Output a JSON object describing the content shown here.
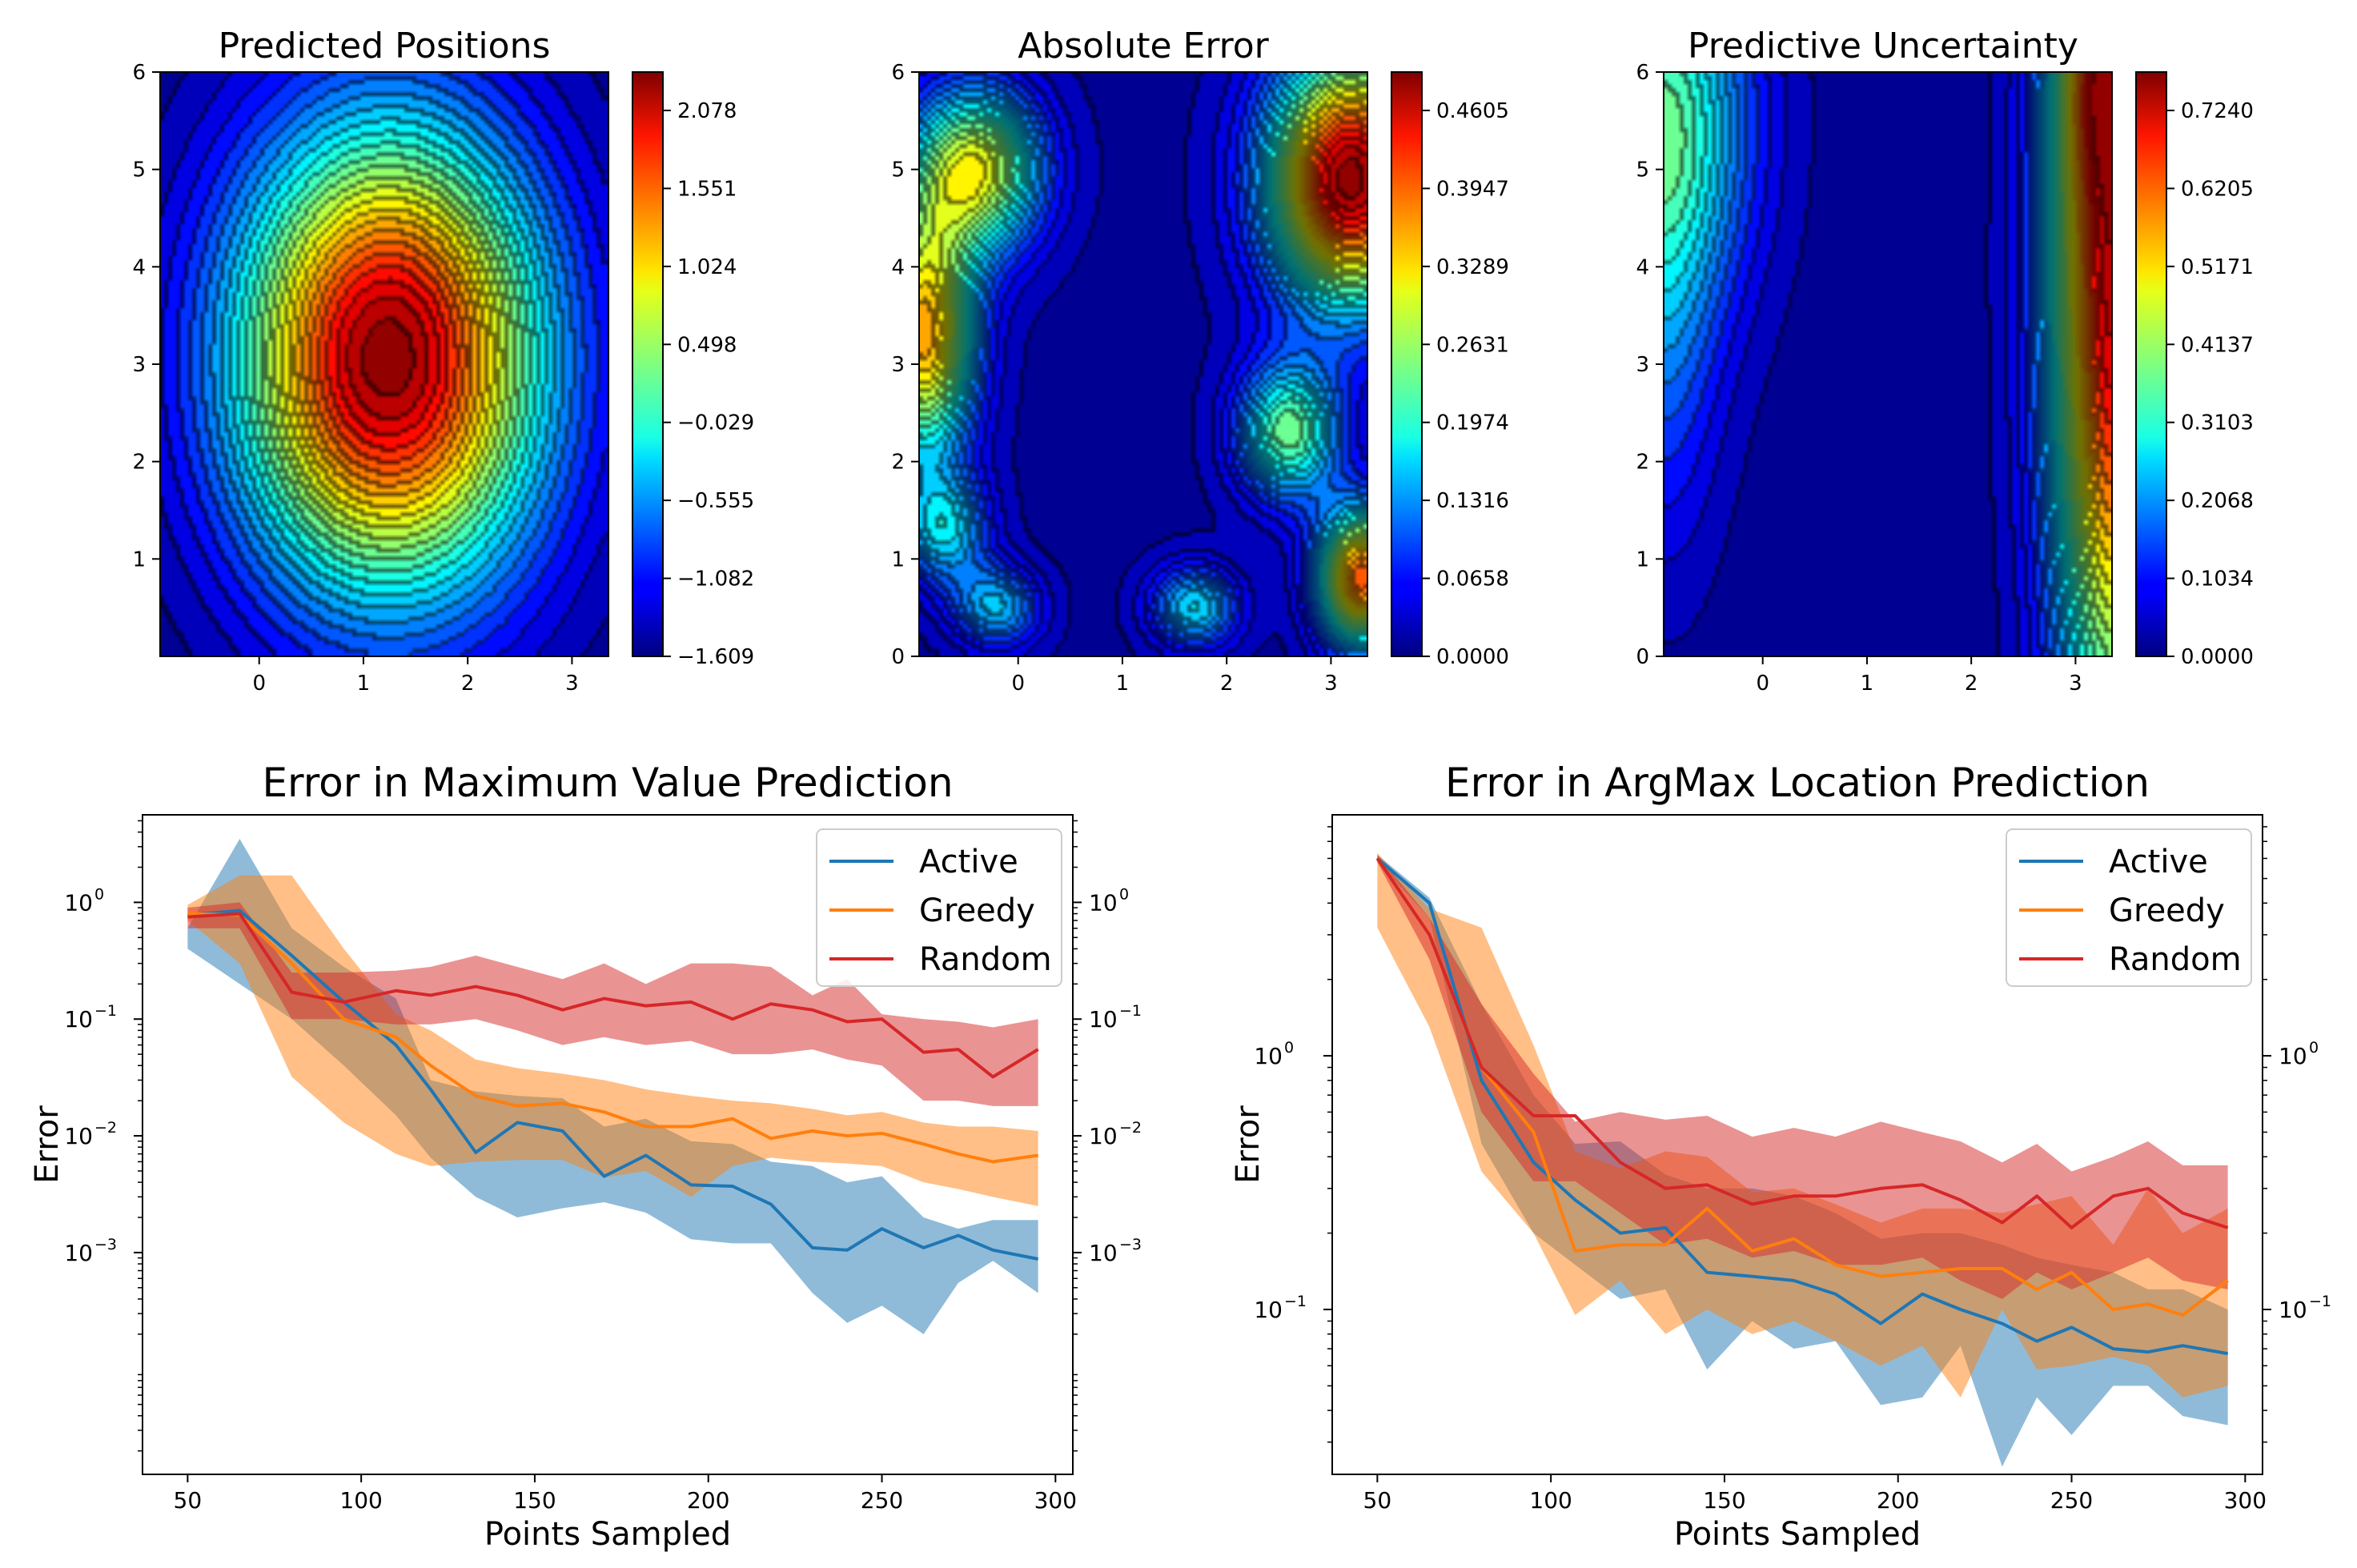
{
  "chart_data": [
    {
      "type": "heatmap",
      "title": "Predicted Positions",
      "xlim": [
        -0.95,
        3.35
      ],
      "ylim": [
        0,
        6
      ],
      "xticks": [
        "0",
        "1",
        "2",
        "3"
      ],
      "yticks": [
        "1",
        "2",
        "3",
        "4",
        "5",
        "6"
      ],
      "colorbar_ticks": [
        "2.078",
        "1.551",
        "1.024",
        "0.498",
        "−0.029",
        "−0.555",
        "−1.082",
        "−1.609"
      ],
      "colorbar_range": [
        -1.85,
        2.35
      ],
      "colormap": "jet",
      "field": {
        "kind": "gaussian",
        "peak_x": 1.25,
        "peak_y": 3.05,
        "peak_value": 2.3,
        "min_value": -1.85
      }
    },
    {
      "type": "heatmap",
      "title": "Absolute Error",
      "xlim": [
        -0.95,
        3.35
      ],
      "ylim": [
        0,
        6
      ],
      "xticks": [
        "0",
        "1",
        "2",
        "3"
      ],
      "yticks": [
        "0",
        "1",
        "2",
        "3",
        "4",
        "5",
        "6"
      ],
      "colorbar_ticks": [
        "0.4605",
        "0.3947",
        "0.3289",
        "0.2631",
        "0.1974",
        "0.1316",
        "0.0658",
        "0.0000"
      ],
      "colorbar_range": [
        0,
        0.52
      ],
      "colormap": "jet",
      "field": {
        "kind": "blobs",
        "blobs": [
          {
            "x": 3.2,
            "y": 4.9,
            "v": 0.5,
            "sx": 0.55,
            "sy": 0.9
          },
          {
            "x": -0.9,
            "y": 3.3,
            "v": 0.36,
            "sx": 0.35,
            "sy": 0.9
          },
          {
            "x": -0.4,
            "y": 5.0,
            "v": 0.3,
            "sx": 0.45,
            "sy": 0.6
          },
          {
            "x": 2.6,
            "y": 2.3,
            "v": 0.24,
            "sx": 0.35,
            "sy": 0.5
          },
          {
            "x": 3.3,
            "y": 0.8,
            "v": 0.4,
            "sx": 0.3,
            "sy": 0.5
          },
          {
            "x": 1.7,
            "y": 0.5,
            "v": 0.17,
            "sx": 0.3,
            "sy": 0.3
          },
          {
            "x": -0.2,
            "y": 0.5,
            "v": 0.15,
            "sx": 0.3,
            "sy": 0.3
          },
          {
            "x": -0.7,
            "y": 1.3,
            "v": 0.16,
            "sx": 0.3,
            "sy": 0.4
          }
        ]
      }
    },
    {
      "type": "heatmap",
      "title": "Predictive Uncertainty",
      "xlim": [
        -0.95,
        3.35
      ],
      "ylim": [
        0,
        6
      ],
      "xticks": [
        "0",
        "1",
        "2",
        "3"
      ],
      "yticks": [
        "0",
        "1",
        "2",
        "3",
        "4",
        "5",
        "6"
      ],
      "colorbar_ticks": [
        "0.7240",
        "0.6205",
        "0.5171",
        "0.4137",
        "0.3103",
        "0.2068",
        "0.1034",
        "0.0000"
      ],
      "colorbar_range": [
        0,
        0.8
      ],
      "colormap": "jet",
      "field": {
        "kind": "blobs",
        "blobs": [
          {
            "x": 3.4,
            "y": 4.0,
            "v": 0.75,
            "sx": 0.45,
            "sy": 3.5
          },
          {
            "x": 3.3,
            "y": 6.0,
            "v": 0.2,
            "sx": 0.3,
            "sy": 0.8
          },
          {
            "x": -0.95,
            "y": 5.5,
            "v": 0.35,
            "sx": 0.6,
            "sy": 1.4
          },
          {
            "x": -0.95,
            "y": 3.0,
            "v": 0.12,
            "sx": 0.4,
            "sy": 1.5
          }
        ]
      }
    },
    {
      "type": "line",
      "title": "Error in Maximum Value Prediction",
      "xlabel": "Points Sampled",
      "ylabel": "Error",
      "yscale": "log",
      "xlim": [
        37,
        305
      ],
      "ylim_log10": [
        -4.9,
        0.75
      ],
      "xticks": [
        50,
        100,
        150,
        200,
        250,
        300
      ],
      "xtick_labels": [
        "50",
        "100",
        "150",
        "200",
        "250",
        "300"
      ],
      "yticks_exp": [
        -3,
        -2,
        -1,
        0
      ],
      "ytick_bases": [
        "10",
        "10",
        "10",
        "10"
      ],
      "ytick_exps": [
        "−3",
        "−2",
        "−1",
        "0"
      ],
      "legend": [
        "Active",
        "Greedy",
        "Random"
      ],
      "legend_position": "upper-right",
      "x": [
        50,
        65,
        80,
        95,
        110,
        120,
        133,
        145,
        158,
        170,
        182,
        195,
        207,
        218,
        230,
        240,
        250,
        262,
        272,
        282,
        295
      ],
      "series": [
        {
          "name": "Active",
          "color": "#1f77b4",
          "values": [
            0.78,
            0.85,
            0.35,
            0.14,
            0.06,
            0.025,
            0.0072,
            0.013,
            0.011,
            0.0045,
            0.0068,
            0.0038,
            0.0037,
            0.0026,
            0.0011,
            0.00105,
            0.0016,
            0.0011,
            0.0014,
            0.00105,
            0.00088
          ],
          "upper": [
            0.6,
            3.5,
            0.6,
            0.28,
            0.15,
            0.03,
            0.024,
            0.022,
            0.021,
            0.012,
            0.014,
            0.009,
            0.0085,
            0.006,
            0.0055,
            0.004,
            0.0045,
            0.002,
            0.0016,
            0.0019,
            0.0019
          ],
          "lower": [
            0.4,
            0.2,
            0.1,
            0.04,
            0.015,
            0.0065,
            0.003,
            0.002,
            0.0024,
            0.0027,
            0.0022,
            0.0013,
            0.0012,
            0.0012,
            0.00045,
            0.00025,
            0.00035,
            0.0002,
            0.00055,
            0.00085,
            0.00045
          ]
        },
        {
          "name": "Greedy",
          "color": "#ff7f0e",
          "values": [
            0.8,
            0.78,
            0.3,
            0.1,
            0.07,
            0.04,
            0.022,
            0.018,
            0.019,
            0.016,
            0.012,
            0.012,
            0.014,
            0.0095,
            0.011,
            0.01,
            0.0105,
            0.0085,
            0.007,
            0.006,
            0.0068
          ],
          "upper": [
            0.95,
            1.7,
            1.7,
            0.4,
            0.11,
            0.08,
            0.045,
            0.038,
            0.034,
            0.03,
            0.025,
            0.022,
            0.02,
            0.019,
            0.017,
            0.015,
            0.016,
            0.013,
            0.012,
            0.012,
            0.011
          ],
          "lower": [
            0.7,
            0.3,
            0.032,
            0.013,
            0.007,
            0.0055,
            0.006,
            0.0062,
            0.0062,
            0.0044,
            0.005,
            0.003,
            0.0055,
            0.0065,
            0.006,
            0.0058,
            0.0055,
            0.004,
            0.0035,
            0.003,
            0.0025
          ]
        },
        {
          "name": "Random",
          "color": "#d62728",
          "values": [
            0.75,
            0.8,
            0.17,
            0.14,
            0.175,
            0.16,
            0.19,
            0.16,
            0.12,
            0.15,
            0.13,
            0.14,
            0.1,
            0.135,
            0.12,
            0.095,
            0.1,
            0.052,
            0.055,
            0.032,
            0.055
          ],
          "upper": [
            0.9,
            1.0,
            0.25,
            0.25,
            0.26,
            0.28,
            0.35,
            0.28,
            0.22,
            0.3,
            0.2,
            0.3,
            0.3,
            0.28,
            0.16,
            0.22,
            0.11,
            0.1,
            0.095,
            0.085,
            0.1
          ],
          "lower": [
            0.6,
            0.6,
            0.1,
            0.1,
            0.09,
            0.09,
            0.1,
            0.08,
            0.06,
            0.07,
            0.06,
            0.065,
            0.05,
            0.05,
            0.055,
            0.045,
            0.04,
            0.02,
            0.02,
            0.018,
            0.018
          ]
        }
      ]
    },
    {
      "type": "line",
      "title": "Error in ArgMax Location Prediction",
      "xlabel": "Points Sampled",
      "ylabel": "Error",
      "yscale": "log",
      "xlim": [
        37,
        305
      ],
      "ylim_log10": [
        -1.65,
        0.95
      ],
      "xticks": [
        50,
        100,
        150,
        200,
        250,
        300
      ],
      "xtick_labels": [
        "50",
        "100",
        "150",
        "200",
        "250",
        "300"
      ],
      "yticks_exp": [
        -1,
        0
      ],
      "ytick_bases": [
        "10",
        "10"
      ],
      "ytick_exps": [
        "−1",
        "0"
      ],
      "legend": [
        "Active",
        "Greedy",
        "Random"
      ],
      "legend_position": "upper-right",
      "x": [
        50,
        65,
        80,
        95,
        107,
        120,
        133,
        145,
        158,
        170,
        182,
        195,
        207,
        218,
        230,
        240,
        250,
        262,
        272,
        282,
        295
      ],
      "series": [
        {
          "name": "Active",
          "color": "#1f77b4",
          "values": [
            6.0,
            4.0,
            0.8,
            0.38,
            0.27,
            0.2,
            0.21,
            0.14,
            0.135,
            0.13,
            0.115,
            0.088,
            0.115,
            0.1,
            0.088,
            0.075,
            0.085,
            0.07,
            0.068,
            0.072,
            0.067
          ],
          "upper": [
            6.2,
            4.2,
            1.6,
            0.7,
            0.45,
            0.46,
            0.34,
            0.3,
            0.3,
            0.28,
            0.24,
            0.19,
            0.2,
            0.2,
            0.18,
            0.16,
            0.15,
            0.14,
            0.12,
            0.12,
            0.1
          ],
          "lower": [
            5.8,
            3.5,
            0.45,
            0.2,
            0.15,
            0.11,
            0.12,
            0.058,
            0.09,
            0.07,
            0.075,
            0.042,
            0.045,
            0.072,
            0.024,
            0.045,
            0.032,
            0.05,
            0.05,
            0.038,
            0.035
          ]
        },
        {
          "name": "Greedy",
          "color": "#ff7f0e",
          "values": [
            6.0,
            3.0,
            0.9,
            0.5,
            0.17,
            0.18,
            0.18,
            0.25,
            0.17,
            0.19,
            0.15,
            0.135,
            0.14,
            0.145,
            0.145,
            0.12,
            0.14,
            0.1,
            0.105,
            0.095,
            0.13
          ],
          "upper": [
            6.3,
            3.8,
            3.2,
            1.1,
            0.42,
            0.36,
            0.42,
            0.4,
            0.29,
            0.3,
            0.26,
            0.22,
            0.25,
            0.25,
            0.24,
            0.26,
            0.28,
            0.18,
            0.3,
            0.2,
            0.25
          ],
          "lower": [
            3.2,
            1.3,
            0.35,
            0.2,
            0.095,
            0.13,
            0.08,
            0.1,
            0.08,
            0.09,
            0.075,
            0.06,
            0.072,
            0.045,
            0.1,
            0.058,
            0.06,
            0.065,
            0.06,
            0.045,
            0.05
          ]
        },
        {
          "name": "Random",
          "color": "#d62728",
          "values": [
            6.0,
            3.0,
            0.9,
            0.58,
            0.58,
            0.38,
            0.3,
            0.31,
            0.26,
            0.28,
            0.28,
            0.3,
            0.31,
            0.27,
            0.22,
            0.28,
            0.21,
            0.28,
            0.3,
            0.24,
            0.21
          ],
          "upper": [
            6.2,
            3.5,
            1.6,
            0.85,
            0.55,
            0.6,
            0.56,
            0.58,
            0.48,
            0.52,
            0.48,
            0.55,
            0.5,
            0.46,
            0.38,
            0.45,
            0.35,
            0.4,
            0.46,
            0.37,
            0.37
          ],
          "lower": [
            5.8,
            2.4,
            0.6,
            0.32,
            0.32,
            0.24,
            0.18,
            0.19,
            0.16,
            0.17,
            0.15,
            0.15,
            0.16,
            0.13,
            0.11,
            0.14,
            0.12,
            0.14,
            0.16,
            0.13,
            0.12
          ]
        }
      ]
    }
  ]
}
